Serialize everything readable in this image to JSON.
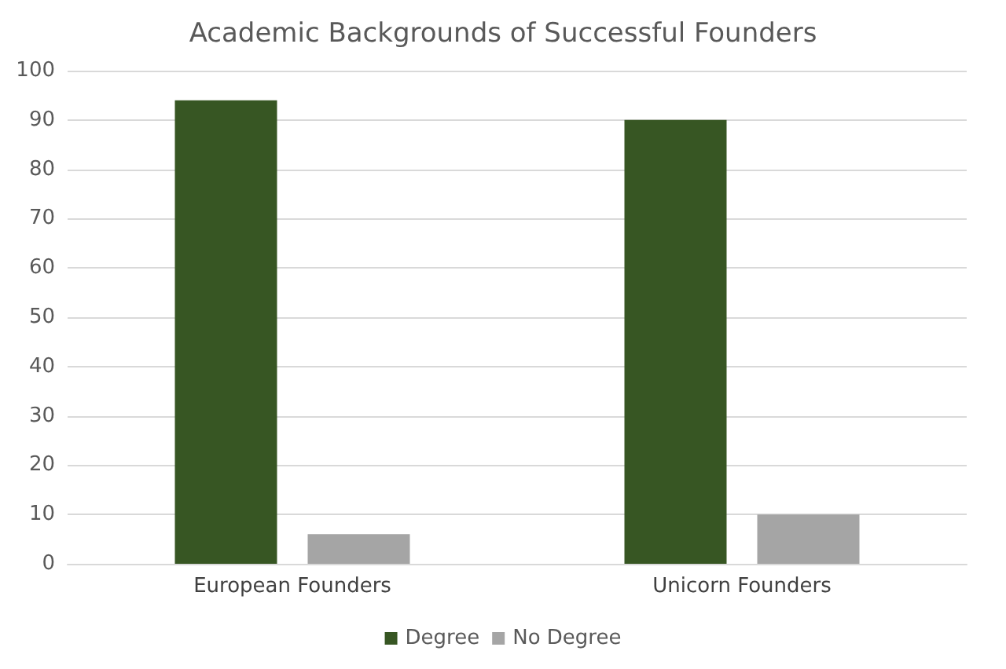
{
  "chart_data": {
    "type": "bar",
    "title": "Academic Backgrounds of Successful Founders",
    "categories": [
      "European Founders",
      "Unicorn Founders"
    ],
    "series": [
      {
        "name": "Degree",
        "color": "#375623",
        "values": [
          94,
          90
        ]
      },
      {
        "name": "No Degree",
        "color": "#a5a5a5",
        "values": [
          6,
          10
        ]
      }
    ],
    "ylim": [
      0,
      100
    ],
    "yticks": [
      0,
      10,
      20,
      30,
      40,
      50,
      60,
      70,
      80,
      90,
      100
    ],
    "grid": "y",
    "legend": "bottom"
  }
}
